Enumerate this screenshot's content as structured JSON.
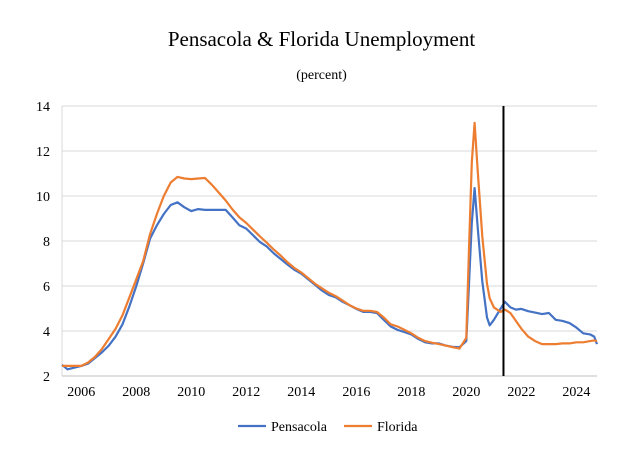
{
  "chart_data": {
    "type": "line",
    "title": "Pensacola & Florida Unemployment",
    "subtitle": "(percent)",
    "xlabel": "",
    "ylabel": "",
    "xlim": [
      2005.3,
      2024.75
    ],
    "ylim": [
      2,
      14
    ],
    "y_ticks": [
      "2",
      "4",
      "6",
      "8",
      "10",
      "12",
      "14"
    ],
    "x_ticks": [
      "2006",
      "2008",
      "2010",
      "2012",
      "2014",
      "2016",
      "2018",
      "2020",
      "2022",
      "2024"
    ],
    "grid": "horizontal",
    "legend_position": "bottom",
    "vertical_marker_x": 2021.35,
    "series": [
      {
        "name": "Pensacola",
        "color": "#4472C4",
        "points": [
          [
            2005.3,
            2.5
          ],
          [
            2005.5,
            2.3
          ],
          [
            2006,
            2.45
          ],
          [
            2006.25,
            2.55
          ],
          [
            2006.5,
            2.8
          ],
          [
            2006.75,
            3.05
          ],
          [
            2007,
            3.35
          ],
          [
            2007.25,
            3.75
          ],
          [
            2007.5,
            4.3
          ],
          [
            2007.75,
            5.1
          ],
          [
            2008,
            6
          ],
          [
            2008.25,
            7
          ],
          [
            2008.5,
            8.1
          ],
          [
            2008.75,
            8.7
          ],
          [
            2009,
            9.2
          ],
          [
            2009.25,
            9.6
          ],
          [
            2009.5,
            9.72
          ],
          [
            2009.75,
            9.5
          ],
          [
            2010,
            9.33
          ],
          [
            2010.25,
            9.42
          ],
          [
            2010.5,
            9.38
          ],
          [
            2010.75,
            9.38
          ],
          [
            2011,
            9.38
          ],
          [
            2011.25,
            9.38
          ],
          [
            2011.5,
            9.05
          ],
          [
            2011.75,
            8.7
          ],
          [
            2012,
            8.55
          ],
          [
            2012.25,
            8.25
          ],
          [
            2012.5,
            7.95
          ],
          [
            2012.75,
            7.75
          ],
          [
            2013,
            7.45
          ],
          [
            2013.25,
            7.2
          ],
          [
            2013.5,
            6.95
          ],
          [
            2013.75,
            6.72
          ],
          [
            2014,
            6.55
          ],
          [
            2014.25,
            6.3
          ],
          [
            2014.5,
            6.05
          ],
          [
            2014.75,
            5.8
          ],
          [
            2015,
            5.6
          ],
          [
            2015.25,
            5.5
          ],
          [
            2015.5,
            5.3
          ],
          [
            2015.75,
            5.15
          ],
          [
            2016,
            4.98
          ],
          [
            2016.25,
            4.85
          ],
          [
            2016.5,
            4.85
          ],
          [
            2016.75,
            4.8
          ],
          [
            2017,
            4.5
          ],
          [
            2017.25,
            4.2
          ],
          [
            2017.5,
            4.05
          ],
          [
            2017.75,
            3.95
          ],
          [
            2018,
            3.85
          ],
          [
            2018.25,
            3.65
          ],
          [
            2018.5,
            3.5
          ],
          [
            2018.75,
            3.45
          ],
          [
            2019,
            3.45
          ],
          [
            2019.25,
            3.35
          ],
          [
            2019.5,
            3.3
          ],
          [
            2019.75,
            3.28
          ],
          [
            2020,
            3.55
          ],
          [
            2020.1,
            6.2
          ],
          [
            2020.2,
            8.8
          ],
          [
            2020.3,
            10.35
          ],
          [
            2020.42,
            8.5
          ],
          [
            2020.58,
            6.2
          ],
          [
            2020.75,
            4.6
          ],
          [
            2020.85,
            4.25
          ],
          [
            2021,
            4.5
          ],
          [
            2021.25,
            5
          ],
          [
            2021.4,
            5.3
          ],
          [
            2021.6,
            5.05
          ],
          [
            2021.8,
            4.95
          ],
          [
            2022,
            4.98
          ],
          [
            2022.25,
            4.88
          ],
          [
            2022.5,
            4.82
          ],
          [
            2022.75,
            4.75
          ],
          [
            2023,
            4.8
          ],
          [
            2023.25,
            4.5
          ],
          [
            2023.5,
            4.45
          ],
          [
            2023.75,
            4.35
          ],
          [
            2024,
            4.15
          ],
          [
            2024.25,
            3.9
          ],
          [
            2024.5,
            3.85
          ],
          [
            2024.65,
            3.75
          ],
          [
            2024.75,
            3.42
          ]
        ]
      },
      {
        "name": "Florida",
        "color": "#ED7D31",
        "points": [
          [
            2005.3,
            2.45
          ],
          [
            2005.5,
            2.45
          ],
          [
            2006,
            2.45
          ],
          [
            2006.25,
            2.6
          ],
          [
            2006.5,
            2.85
          ],
          [
            2006.75,
            3.2
          ],
          [
            2007,
            3.65
          ],
          [
            2007.25,
            4.1
          ],
          [
            2007.5,
            4.7
          ],
          [
            2007.75,
            5.5
          ],
          [
            2008,
            6.3
          ],
          [
            2008.25,
            7.1
          ],
          [
            2008.5,
            8.3
          ],
          [
            2008.75,
            9.2
          ],
          [
            2009,
            10
          ],
          [
            2009.25,
            10.6
          ],
          [
            2009.5,
            10.85
          ],
          [
            2009.75,
            10.78
          ],
          [
            2010,
            10.75
          ],
          [
            2010.25,
            10.78
          ],
          [
            2010.5,
            10.8
          ],
          [
            2010.75,
            10.5
          ],
          [
            2011,
            10.15
          ],
          [
            2011.25,
            9.8
          ],
          [
            2011.5,
            9.4
          ],
          [
            2011.75,
            9.05
          ],
          [
            2012,
            8.8
          ],
          [
            2012.25,
            8.5
          ],
          [
            2012.5,
            8.2
          ],
          [
            2012.75,
            7.92
          ],
          [
            2013,
            7.62
          ],
          [
            2013.25,
            7.35
          ],
          [
            2013.5,
            7.05
          ],
          [
            2013.75,
            6.8
          ],
          [
            2014,
            6.6
          ],
          [
            2014.25,
            6.35
          ],
          [
            2014.5,
            6.1
          ],
          [
            2014.75,
            5.9
          ],
          [
            2015,
            5.7
          ],
          [
            2015.25,
            5.55
          ],
          [
            2015.5,
            5.35
          ],
          [
            2015.75,
            5.15
          ],
          [
            2016,
            5
          ],
          [
            2016.25,
            4.9
          ],
          [
            2016.5,
            4.9
          ],
          [
            2016.75,
            4.85
          ],
          [
            2017,
            4.6
          ],
          [
            2017.25,
            4.3
          ],
          [
            2017.5,
            4.2
          ],
          [
            2017.75,
            4.05
          ],
          [
            2018,
            3.9
          ],
          [
            2018.25,
            3.7
          ],
          [
            2018.5,
            3.55
          ],
          [
            2018.75,
            3.48
          ],
          [
            2019,
            3.42
          ],
          [
            2019.25,
            3.35
          ],
          [
            2019.5,
            3.28
          ],
          [
            2019.75,
            3.22
          ],
          [
            2020,
            3.7
          ],
          [
            2020.1,
            7.8
          ],
          [
            2020.2,
            11.5
          ],
          [
            2020.3,
            13.25
          ],
          [
            2020.42,
            11
          ],
          [
            2020.58,
            8.2
          ],
          [
            2020.75,
            6.1
          ],
          [
            2020.85,
            5.45
          ],
          [
            2021,
            5.05
          ],
          [
            2021.25,
            4.85
          ],
          [
            2021.4,
            4.95
          ],
          [
            2021.6,
            4.8
          ],
          [
            2021.8,
            4.45
          ],
          [
            2022,
            4.1
          ],
          [
            2022.25,
            3.75
          ],
          [
            2022.5,
            3.55
          ],
          [
            2022.75,
            3.42
          ],
          [
            2023,
            3.42
          ],
          [
            2023.25,
            3.42
          ],
          [
            2023.5,
            3.45
          ],
          [
            2023.75,
            3.45
          ],
          [
            2024,
            3.5
          ],
          [
            2024.25,
            3.5
          ],
          [
            2024.5,
            3.55
          ],
          [
            2024.65,
            3.58
          ],
          [
            2024.75,
            3.55
          ]
        ]
      }
    ]
  }
}
